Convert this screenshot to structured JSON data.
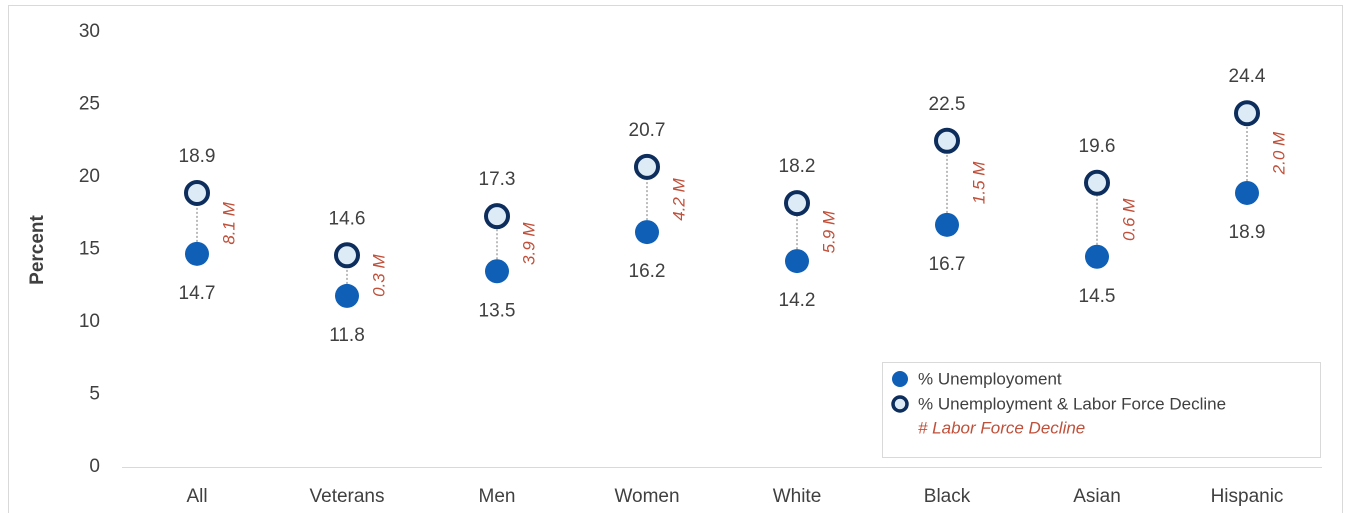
{
  "chart_data": {
    "type": "dot",
    "y_label": "Percent",
    "categories": [
      "All",
      "Veterans",
      "Men",
      "Women",
      "White",
      "Black",
      "Asian",
      "Hispanic"
    ],
    "series": [
      {
        "name": "% Unemployoment",
        "color": "#0f5fb6",
        "values": [
          14.7,
          11.8,
          13.5,
          16.2,
          14.2,
          16.7,
          14.5,
          18.9
        ]
      },
      {
        "name": "% Unemployment & Labor Force Decline",
        "color": "#0d2d5c",
        "fill": "#dcebf6",
        "values": [
          18.9,
          14.6,
          17.3,
          20.7,
          18.2,
          22.5,
          19.6,
          24.4
        ]
      }
    ],
    "labor_force_decline": {
      "name": "# Labor Force Decline",
      "color": "#c0503a",
      "values": [
        8.1,
        0.3,
        3.9,
        4.2,
        5.9,
        1.5,
        0.6,
        2.0
      ],
      "value_labels": [
        "8.1 M",
        "0.3 M",
        "3.9 M",
        "4.2 M",
        "5.9 M",
        "1.5 M",
        "0.6 M",
        "2.0 M"
      ]
    },
    "ylim": [
      0,
      30
    ],
    "yticks": [
      0,
      5,
      10,
      15,
      20,
      25,
      30
    ]
  }
}
